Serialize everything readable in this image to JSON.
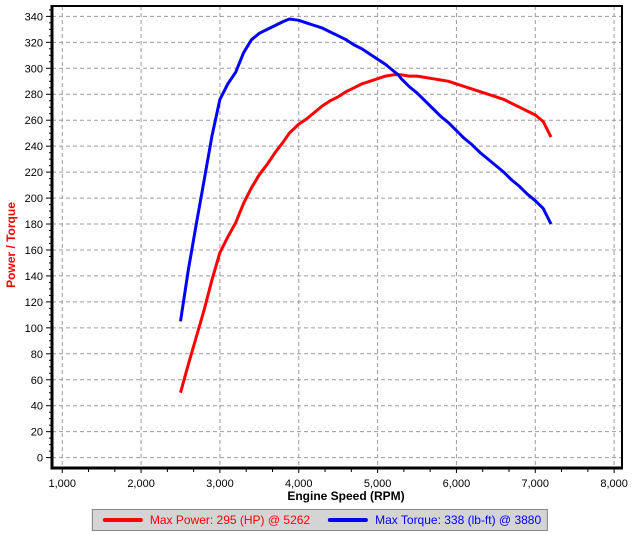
{
  "chart_data": {
    "type": "line",
    "title": "",
    "xlabel": "Engine Speed (RPM)",
    "ylabel": "Power / Torque",
    "xlim": [
      1000,
      8000
    ],
    "ylim": [
      0,
      340
    ],
    "x_ticks": [
      1000,
      2000,
      3000,
      4000,
      5000,
      6000,
      7000,
      8000
    ],
    "x_tick_labels": [
      "1,000",
      "2,000",
      "3,000",
      "4,000",
      "5,000",
      "6,000",
      "7,000",
      "8,000"
    ],
    "y_ticks": [
      0,
      20,
      40,
      60,
      80,
      100,
      120,
      140,
      160,
      180,
      200,
      220,
      240,
      260,
      280,
      300,
      320,
      340
    ],
    "grid": "dashed",
    "legend_position": "bottom",
    "x": [
      2500,
      2600,
      2700,
      2800,
      2900,
      3000,
      3100,
      3200,
      3300,
      3400,
      3500,
      3600,
      3700,
      3800,
      3880,
      4000,
      4100,
      4200,
      4300,
      4400,
      4500,
      4600,
      4700,
      4800,
      4900,
      5000,
      5100,
      5200,
      5262,
      5300,
      5400,
      5500,
      5600,
      5700,
      5800,
      5900,
      6000,
      6100,
      6200,
      6300,
      6400,
      6500,
      6600,
      6700,
      6800,
      6900,
      7000,
      7100,
      7200
    ],
    "series": [
      {
        "name": "Power",
        "unit": "HP",
        "color": "#ff0000",
        "legend_label": "Max Power: 295 (HP) @ 5262",
        "max": {
          "value": 295,
          "rpm": 5262
        },
        "values": [
          50,
          72,
          93,
          114,
          137,
          158,
          170,
          181,
          196,
          208,
          218,
          226,
          235,
          243,
          250,
          257,
          261,
          266,
          271,
          275,
          278,
          282,
          285,
          288,
          290,
          292,
          294,
          295,
          295,
          295,
          294,
          294,
          293,
          292,
          291,
          290,
          288,
          286,
          284,
          282,
          280,
          278,
          276,
          273,
          270,
          267,
          264,
          259,
          247
        ]
      },
      {
        "name": "Torque",
        "unit": "lb-ft",
        "color": "#0000ff",
        "legend_label": "Max Torque: 338 (lb-ft) @ 3880",
        "max": {
          "value": 338,
          "rpm": 3880
        },
        "values": [
          105,
          145,
          180,
          214,
          248,
          276,
          288,
          297,
          312,
          322,
          327,
          330,
          333,
          336,
          338,
          337,
          335,
          333,
          331,
          328,
          325,
          322,
          318,
          315,
          311,
          307,
          303,
          298,
          295,
          292,
          286,
          281,
          275,
          269,
          263,
          258,
          252,
          246,
          241,
          235,
          230,
          225,
          220,
          214,
          209,
          203,
          198,
          192,
          180
        ]
      }
    ]
  },
  "colors": {
    "axis": "#000000",
    "grid": "#9c9c9c",
    "tick_text": "#000000",
    "y_axis_title": "#ff0000",
    "legend_bg": "#d4d4d4",
    "legend_border": "#858585"
  }
}
